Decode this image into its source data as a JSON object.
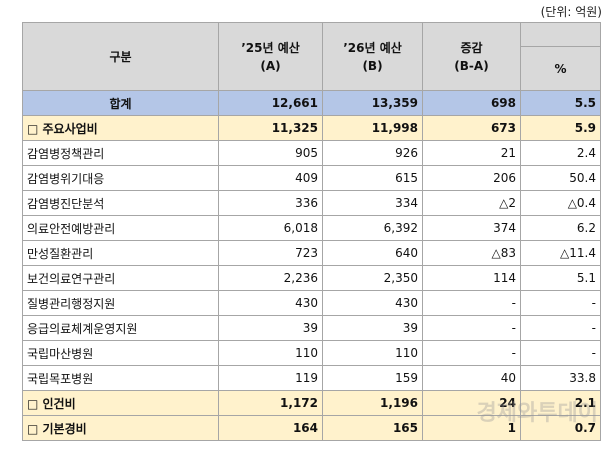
{
  "unit": "(단위: 억원)",
  "header": {
    "category": "구분",
    "budget_a": [
      "’25년 예산",
      "(A)"
    ],
    "budget_b": [
      "’26년 예산",
      "(B)"
    ],
    "change": [
      "증감",
      "(B-A)"
    ],
    "percent": "%"
  },
  "table": {
    "rows": [
      [
        "합계",
        "12,661",
        "13,359",
        "698",
        "5.5"
      ],
      [
        "□ 주요사업비",
        "11,325",
        "11,998",
        "673",
        "5.9"
      ],
      [
        "감염병정책관리",
        "905",
        "926",
        "21",
        "2.4"
      ],
      [
        "감염병위기대응",
        "409",
        "615",
        "206",
        "50.4"
      ],
      [
        "감염병진단분석",
        "336",
        "334",
        "△2",
        "△0.4"
      ],
      [
        "의료안전예방관리",
        "6,018",
        "6,392",
        "374",
        "6.2"
      ],
      [
        "만성질환관리",
        "723",
        "640",
        "△83",
        "△11.4"
      ],
      [
        "보건의료연구관리",
        "2,236",
        "2,350",
        "114",
        "5.1"
      ],
      [
        "질병관리행정지원",
        "430",
        "430",
        "-",
        "-"
      ],
      [
        "응급의료체계운영지원",
        "39",
        "39",
        "-",
        "-"
      ],
      [
        "국립마산병원",
        "110",
        "110",
        "-",
        "-"
      ],
      [
        "국립목포병원",
        "119",
        "159",
        "40",
        "33.8"
      ],
      [
        "□ 인건비",
        "1,172",
        "1,196",
        "24",
        "2.1"
      ],
      [
        "□ 기본경비",
        "164",
        "165",
        "1",
        "0.7"
      ]
    ]
  },
  "watermark": "경제와투데이"
}
